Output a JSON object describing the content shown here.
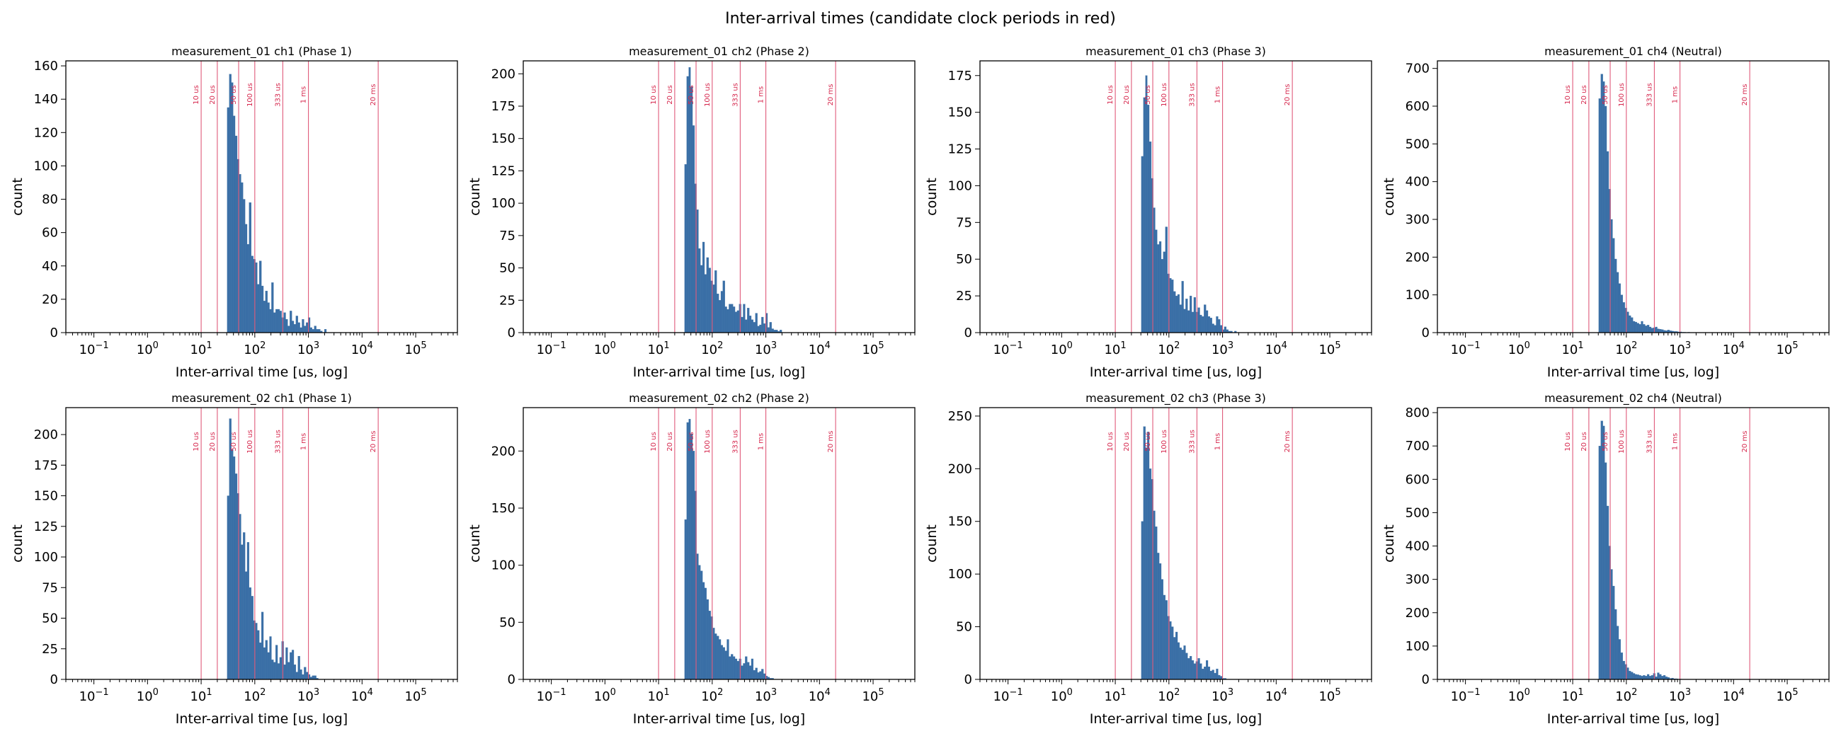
{
  "figure": {
    "title": "Inter-arrival times (candidate clock periods in red)"
  },
  "colors": {
    "bar": "#3a6fa6",
    "candidate_line": "#e05a7a",
    "candidate_text": "#d6274d"
  },
  "candidates": [
    {
      "label": "10 us",
      "value": 10
    },
    {
      "label": "20 us",
      "value": 20
    },
    {
      "label": "50 us",
      "value": 50
    },
    {
      "label": "100 us",
      "value": 100
    },
    {
      "label": "333 us",
      "value": 333
    },
    {
      "label": "1 ms",
      "value": 1000
    },
    {
      "label": "20 ms",
      "value": 20000
    }
  ],
  "chart_data": [
    {
      "type": "bar",
      "title": "measurement_01 ch1 (Phase 1)",
      "xlabel": "Inter-arrival time [us, log]",
      "ylabel": "count",
      "xscale": "log",
      "xlim": [
        0.03,
        600000
      ],
      "ylim": [
        0,
        163
      ],
      "yticks": [
        0,
        20,
        40,
        60,
        80,
        100,
        120,
        140,
        160
      ],
      "xticks": [
        "10^-1",
        "10^0",
        "10^1",
        "10^2",
        "10^3",
        "10^4",
        "10^5"
      ],
      "x": [
        32,
        35,
        38,
        41,
        45,
        49,
        53,
        58,
        63,
        69,
        75,
        82,
        90,
        98,
        107,
        116,
        127,
        139,
        151,
        165,
        180,
        196,
        214,
        234,
        255,
        278,
        304,
        331,
        361,
        394,
        430,
        470,
        512,
        559,
        610,
        666,
        726,
        793,
        865,
        944,
        1030,
        1124,
        1227,
        1339,
        1461,
        1594,
        1740,
        1899,
        2072
      ],
      "values": [
        135,
        155,
        150,
        130,
        118,
        104,
        95,
        90,
        80,
        65,
        53,
        78,
        46,
        44,
        42,
        29,
        43,
        28,
        19,
        25,
        18,
        14,
        30,
        12,
        14,
        14,
        13,
        9,
        12,
        8,
        4,
        13,
        7,
        5,
        10,
        6,
        3,
        8,
        4,
        6,
        9,
        3,
        2,
        4,
        2,
        2,
        1,
        0,
        2
      ]
    },
    {
      "type": "bar",
      "title": "measurement_01 ch2 (Phase 2)",
      "xlabel": "Inter-arrival time [us, log]",
      "ylabel": "count",
      "xscale": "log",
      "xlim": [
        0.03,
        600000
      ],
      "ylim": [
        0,
        210
      ],
      "yticks": [
        0,
        25,
        50,
        75,
        100,
        125,
        150,
        175,
        200
      ],
      "xticks": [
        "10^-1",
        "10^0",
        "10^1",
        "10^2",
        "10^3",
        "10^4",
        "10^5"
      ],
      "x": [
        32,
        35,
        38,
        41,
        45,
        49,
        53,
        58,
        63,
        69,
        75,
        82,
        90,
        98,
        107,
        116,
        127,
        139,
        151,
        165,
        180,
        196,
        214,
        234,
        255,
        278,
        304,
        331,
        361,
        394,
        430,
        470,
        512,
        559,
        610,
        666,
        726,
        793,
        865,
        944,
        1030,
        1124,
        1227,
        1339,
        1461,
        1594,
        1740,
        1899,
        2072
      ],
      "values": [
        130,
        198,
        205,
        190,
        160,
        115,
        95,
        65,
        52,
        70,
        45,
        58,
        50,
        40,
        37,
        48,
        30,
        25,
        32,
        40,
        20,
        18,
        22,
        22,
        20,
        16,
        17,
        22,
        12,
        22,
        10,
        19,
        13,
        10,
        8,
        15,
        5,
        6,
        12,
        7,
        15,
        4,
        8,
        3,
        2,
        2,
        1,
        2,
        0
      ]
    },
    {
      "type": "bar",
      "title": "measurement_01 ch3 (Phase 3)",
      "xlabel": "Inter-arrival time [us, log]",
      "ylabel": "count",
      "xscale": "log",
      "xlim": [
        0.03,
        600000
      ],
      "ylim": [
        0,
        185
      ],
      "yticks": [
        0,
        25,
        50,
        75,
        100,
        125,
        150,
        175
      ],
      "xticks": [
        "10^-1",
        "10^0",
        "10^1",
        "10^2",
        "10^3",
        "10^4",
        "10^5"
      ],
      "x": [
        32,
        35,
        38,
        41,
        45,
        49,
        53,
        58,
        63,
        69,
        75,
        82,
        90,
        98,
        107,
        116,
        127,
        139,
        151,
        165,
        180,
        196,
        214,
        234,
        255,
        278,
        304,
        331,
        361,
        394,
        430,
        470,
        512,
        559,
        610,
        666,
        726,
        793,
        865,
        944,
        1030,
        1124,
        1227,
        1339,
        1461,
        1594,
        1740,
        1899,
        2072
      ],
      "values": [
        120,
        160,
        175,
        155,
        130,
        105,
        85,
        70,
        60,
        62,
        50,
        55,
        72,
        40,
        37,
        36,
        28,
        25,
        26,
        19,
        35,
        16,
        23,
        15,
        25,
        14,
        24,
        14,
        17,
        12,
        11,
        19,
        15,
        11,
        10,
        6,
        5,
        11,
        9,
        5,
        2,
        4,
        2,
        1,
        1,
        0,
        1,
        0,
        0
      ]
    },
    {
      "type": "bar",
      "title": "measurement_01 ch4 (Neutral)",
      "xlabel": "Inter-arrival time [us, log]",
      "ylabel": "count",
      "xscale": "log",
      "xlim": [
        0.03,
        600000
      ],
      "ylim": [
        0,
        720
      ],
      "yticks": [
        0,
        100,
        200,
        300,
        400,
        500,
        600,
        700
      ],
      "xticks": [
        "10^-1",
        "10^0",
        "10^1",
        "10^2",
        "10^3",
        "10^4",
        "10^5"
      ],
      "x": [
        32,
        35,
        38,
        41,
        45,
        49,
        53,
        58,
        63,
        69,
        75,
        82,
        90,
        98,
        107,
        116,
        127,
        139,
        151,
        165,
        180,
        196,
        214,
        234,
        255,
        278,
        304,
        331,
        361,
        394,
        430,
        470,
        512,
        559,
        610,
        666,
        726,
        793,
        865,
        944,
        1030,
        1124,
        1227,
        1339,
        1461,
        1594,
        1740,
        1899,
        2072
      ],
      "values": [
        620,
        685,
        665,
        600,
        480,
        380,
        300,
        250,
        195,
        160,
        130,
        100,
        80,
        65,
        55,
        45,
        40,
        30,
        28,
        25,
        22,
        30,
        22,
        18,
        20,
        15,
        12,
        13,
        15,
        10,
        9,
        8,
        6,
        5,
        7,
        5,
        4,
        3,
        3,
        2,
        2,
        1,
        1,
        0,
        1,
        0,
        0,
        0,
        0
      ]
    },
    {
      "type": "bar",
      "title": "measurement_02 ch1 (Phase 1)",
      "xlabel": "Inter-arrival time [us, log]",
      "ylabel": "count",
      "xscale": "log",
      "xlim": [
        0.03,
        600000
      ],
      "ylim": [
        0,
        222
      ],
      "yticks": [
        0,
        25,
        50,
        75,
        100,
        125,
        150,
        175,
        200
      ],
      "xticks": [
        "10^-1",
        "10^0",
        "10^1",
        "10^2",
        "10^3",
        "10^4",
        "10^5"
      ],
      "x": [
        32,
        35,
        38,
        41,
        45,
        49,
        53,
        58,
        63,
        69,
        75,
        82,
        90,
        98,
        107,
        116,
        127,
        139,
        151,
        165,
        180,
        196,
        214,
        234,
        255,
        278,
        304,
        331,
        361,
        394,
        430,
        470,
        512,
        559,
        610,
        666,
        726,
        793,
        865,
        944,
        1030,
        1124,
        1227,
        1339,
        1461,
        1594,
        1740,
        1899,
        2072
      ],
      "values": [
        150,
        213,
        188,
        182,
        168,
        152,
        135,
        110,
        120,
        88,
        112,
        75,
        68,
        48,
        46,
        40,
        30,
        55,
        26,
        32,
        22,
        35,
        16,
        14,
        28,
        13,
        18,
        31,
        12,
        26,
        14,
        22,
        24,
        12,
        6,
        19,
        8,
        4,
        10,
        6,
        4,
        2,
        3,
        3,
        1,
        0,
        0,
        0,
        0
      ]
    },
    {
      "type": "bar",
      "title": "measurement_02 ch2 (Phase 2)",
      "xlabel": "Inter-arrival time [us, log]",
      "ylabel": "count",
      "xscale": "log",
      "xlim": [
        0.03,
        600000
      ],
      "ylim": [
        0,
        238
      ],
      "yticks": [
        0,
        50,
        100,
        150,
        200
      ],
      "xticks": [
        "10^-1",
        "10^0",
        "10^1",
        "10^2",
        "10^3",
        "10^4",
        "10^5"
      ],
      "x": [
        32,
        35,
        38,
        41,
        45,
        49,
        53,
        58,
        63,
        69,
        75,
        82,
        90,
        98,
        107,
        116,
        127,
        139,
        151,
        165,
        180,
        196,
        214,
        234,
        255,
        278,
        304,
        331,
        361,
        394,
        430,
        470,
        512,
        559,
        610,
        666,
        726,
        793,
        865,
        944,
        1030,
        1124,
        1227,
        1339,
        1461,
        1594,
        1740,
        1899,
        2072
      ],
      "values": [
        140,
        225,
        228,
        215,
        200,
        165,
        110,
        100,
        95,
        85,
        80,
        70,
        60,
        55,
        45,
        40,
        38,
        35,
        30,
        28,
        25,
        35,
        20,
        22,
        20,
        18,
        16,
        18,
        12,
        14,
        20,
        15,
        12,
        18,
        8,
        10,
        6,
        7,
        9,
        5,
        3,
        2,
        1,
        1,
        0,
        0,
        0,
        0,
        0
      ]
    },
    {
      "type": "bar",
      "title": "measurement_02 ch3 (Phase 3)",
      "xlabel": "Inter-arrival time [us, log]",
      "ylabel": "count",
      "xscale": "log",
      "xlim": [
        0.03,
        600000
      ],
      "ylim": [
        0,
        258
      ],
      "yticks": [
        0,
        50,
        100,
        150,
        200,
        250
      ],
      "xticks": [
        "10^-1",
        "10^0",
        "10^1",
        "10^2",
        "10^3",
        "10^4",
        "10^5"
      ],
      "x": [
        32,
        35,
        38,
        41,
        45,
        49,
        53,
        58,
        63,
        69,
        75,
        82,
        90,
        98,
        107,
        116,
        127,
        139,
        151,
        165,
        180,
        196,
        214,
        234,
        255,
        278,
        304,
        331,
        361,
        394,
        430,
        470,
        512,
        559,
        610,
        666,
        726,
        793,
        865,
        944,
        1030,
        1124,
        1227,
        1339,
        1461,
        1594,
        1740,
        1899,
        2072
      ],
      "values": [
        150,
        240,
        220,
        235,
        200,
        190,
        160,
        145,
        120,
        110,
        95,
        80,
        75,
        60,
        55,
        50,
        40,
        45,
        35,
        30,
        28,
        32,
        25,
        20,
        22,
        18,
        15,
        17,
        20,
        15,
        10,
        12,
        18,
        12,
        8,
        9,
        6,
        10,
        4,
        3,
        1,
        1,
        0,
        0,
        0,
        0,
        0,
        0,
        0
      ]
    },
    {
      "type": "bar",
      "title": "measurement_02 ch4 (Neutral)",
      "xlabel": "Inter-arrival time [us, log]",
      "ylabel": "count",
      "xscale": "log",
      "xlim": [
        0.03,
        600000
      ],
      "ylim": [
        0,
        815
      ],
      "yticks": [
        0,
        100,
        200,
        300,
        400,
        500,
        600,
        700,
        800
      ],
      "xticks": [
        "10^-1",
        "10^0",
        "10^1",
        "10^2",
        "10^3",
        "10^4",
        "10^5"
      ],
      "x": [
        32,
        35,
        38,
        41,
        45,
        49,
        53,
        58,
        63,
        69,
        75,
        82,
        90,
        98,
        107,
        116,
        127,
        139,
        151,
        165,
        180,
        196,
        214,
        234,
        255,
        278,
        304,
        331,
        361,
        394,
        430,
        470,
        512,
        559,
        610,
        666,
        726,
        793,
        865,
        944,
        1030,
        1124,
        1227,
        1339,
        1461,
        1594,
        1740,
        1899,
        2072
      ],
      "values": [
        700,
        775,
        760,
        650,
        520,
        400,
        330,
        280,
        210,
        160,
        120,
        80,
        55,
        45,
        35,
        25,
        22,
        18,
        15,
        14,
        12,
        10,
        12,
        10,
        15,
        10,
        12,
        18,
        8,
        20,
        15,
        10,
        12,
        8,
        6,
        3,
        4,
        2,
        2,
        1,
        1,
        0,
        0,
        0,
        0,
        0,
        0,
        0,
        0
      ]
    }
  ]
}
